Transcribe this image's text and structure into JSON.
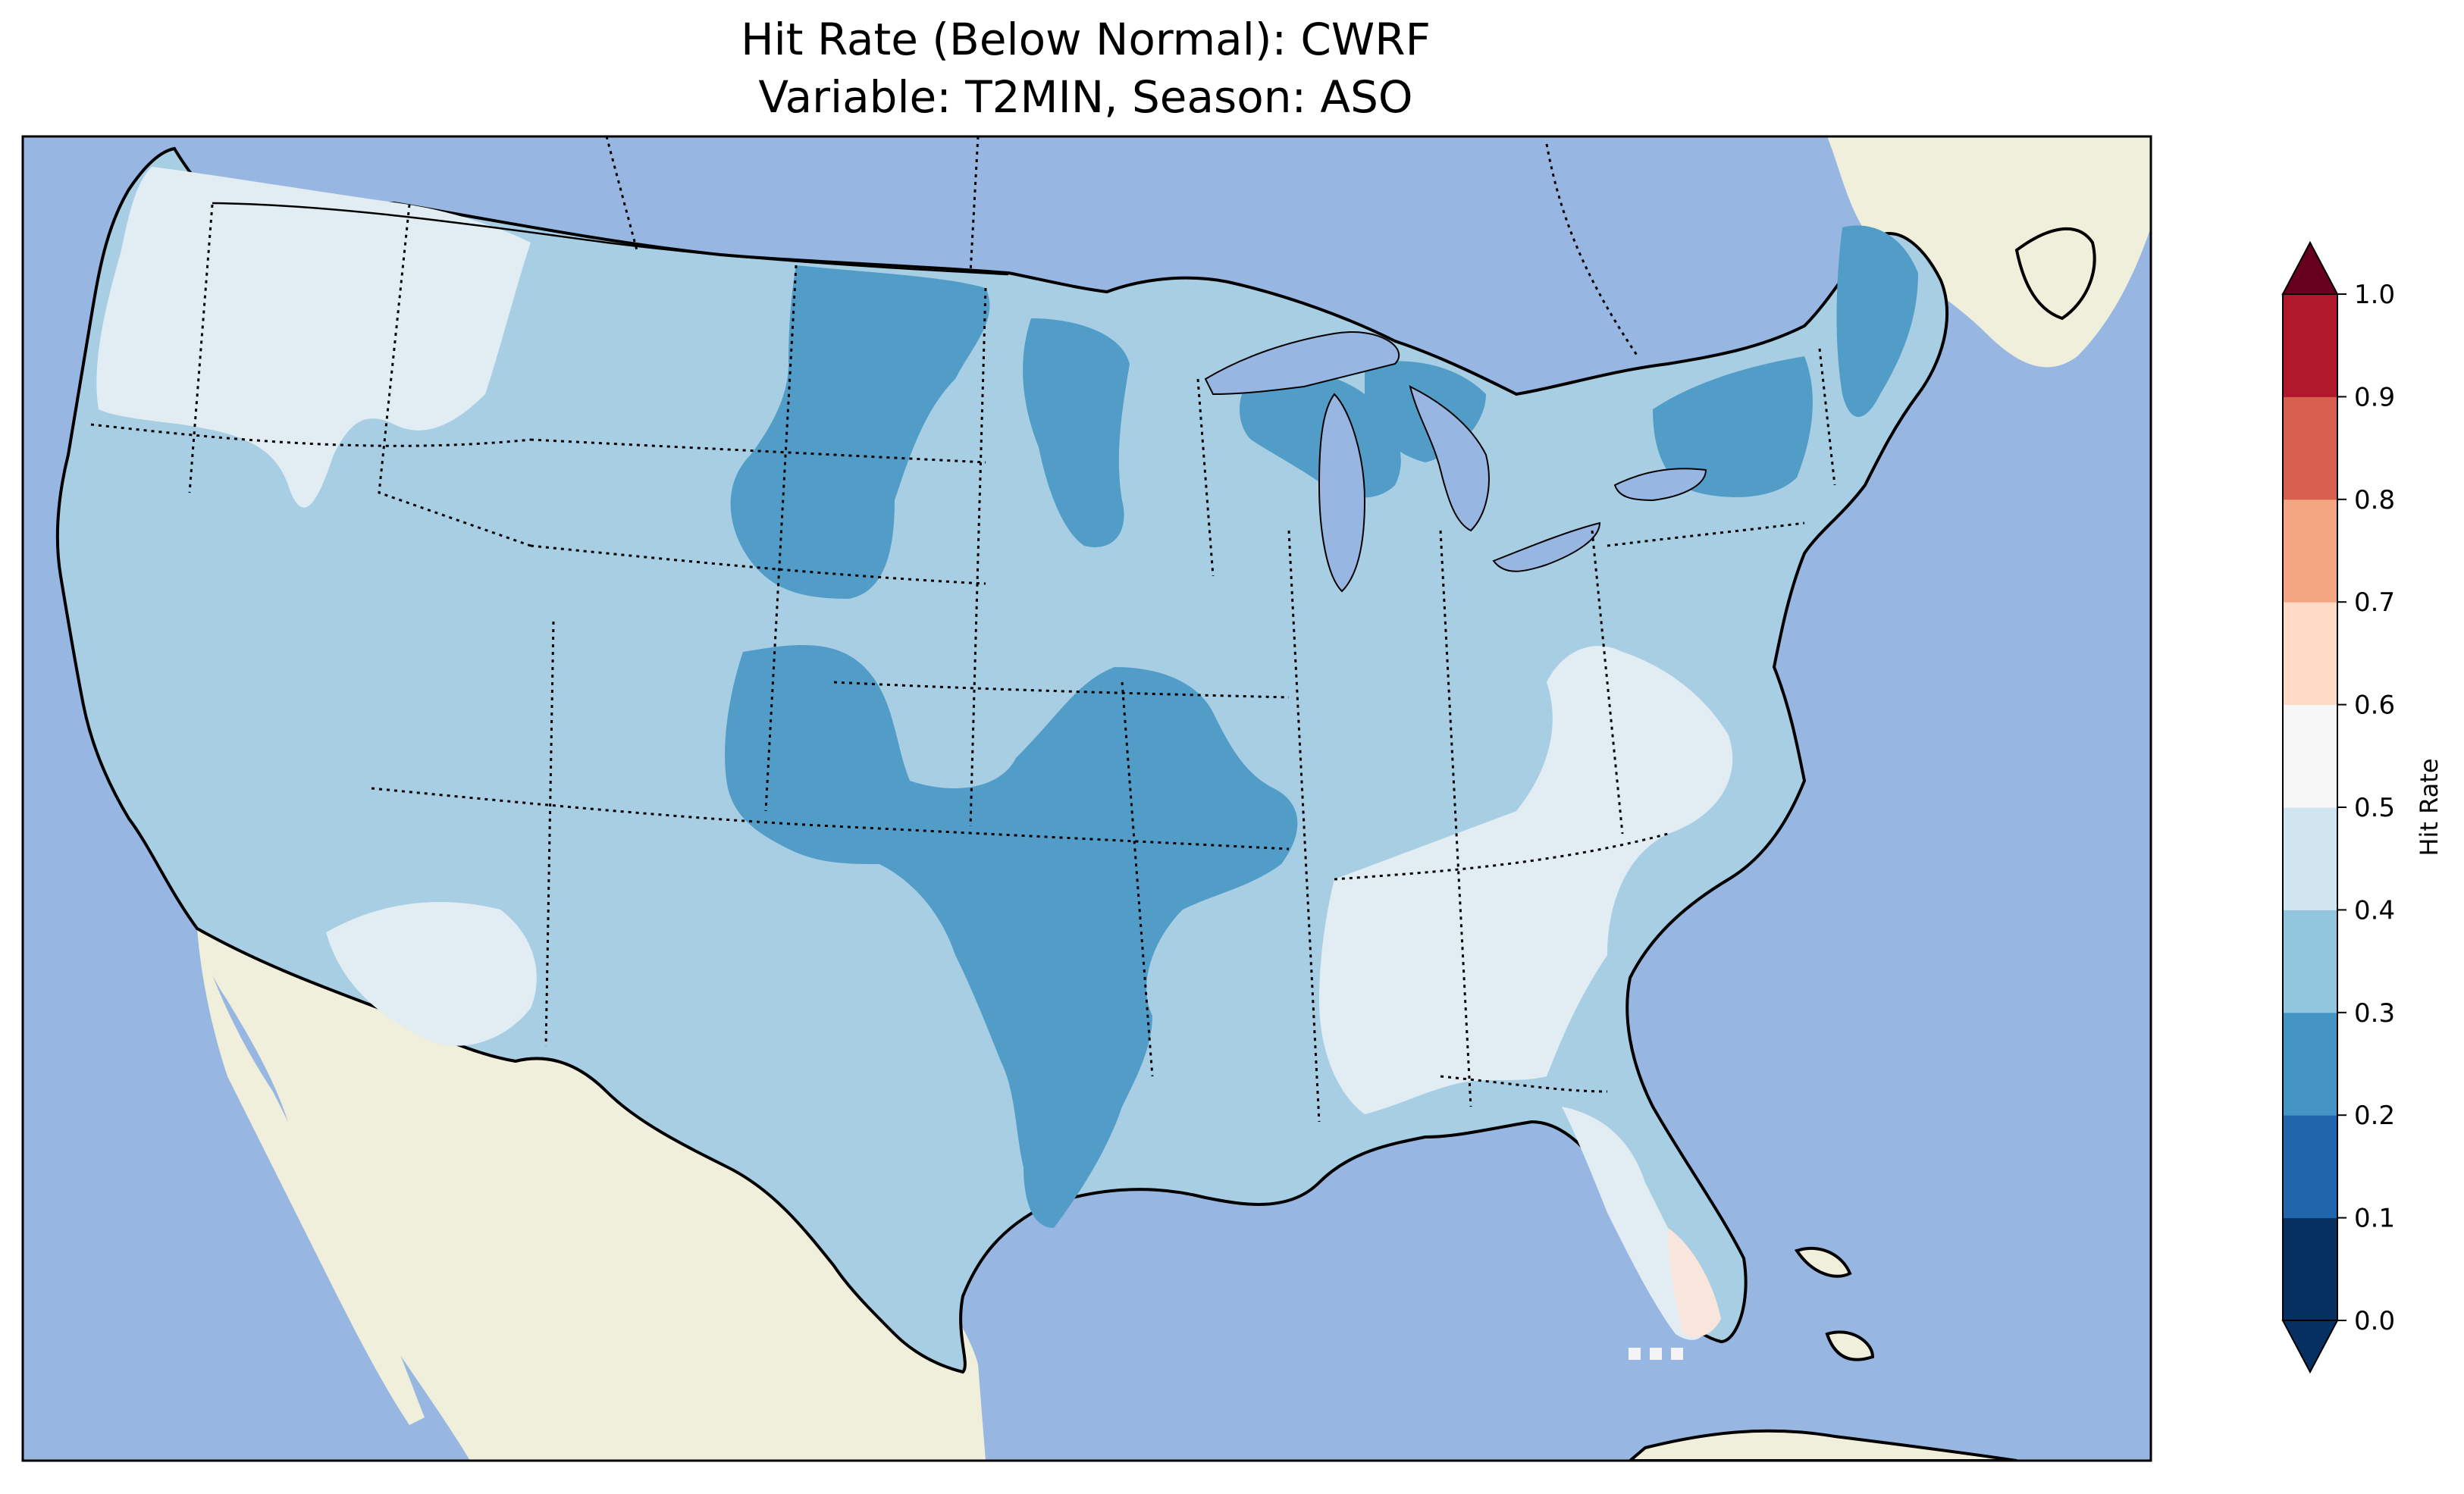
{
  "title_line1": "Hit Rate (Below Normal): CWRF",
  "title_line2": "Variable: T2MIN, Season: ASO",
  "colorbar": {
    "label": "Hit Rate",
    "ticks": [
      "0.0",
      "0.1",
      "0.2",
      "0.3",
      "0.4",
      "0.5",
      "0.6",
      "0.7",
      "0.8",
      "0.9",
      "1.0"
    ],
    "bin_colors": [
      "#053061",
      "#2166ac",
      "#4393c3",
      "#92c5de",
      "#d1e5f0",
      "#f7f7f7",
      "#fddbc7",
      "#f4a582",
      "#d6604d",
      "#b2182b"
    ],
    "under_color": "#053061",
    "over_color": "#67001f",
    "extend": "both"
  },
  "map": {
    "ocean_color": "#97b6e1",
    "land_color": "#efefdb",
    "lake_color": "#97b6e1",
    "field_colors": {
      "0.2-0.3": "#529dc8",
      "0.3-0.4": "#a8cee4",
      "0.4-0.5": "#e1ecf3",
      "0.5-0.6": "#f8e5dc"
    }
  }
}
